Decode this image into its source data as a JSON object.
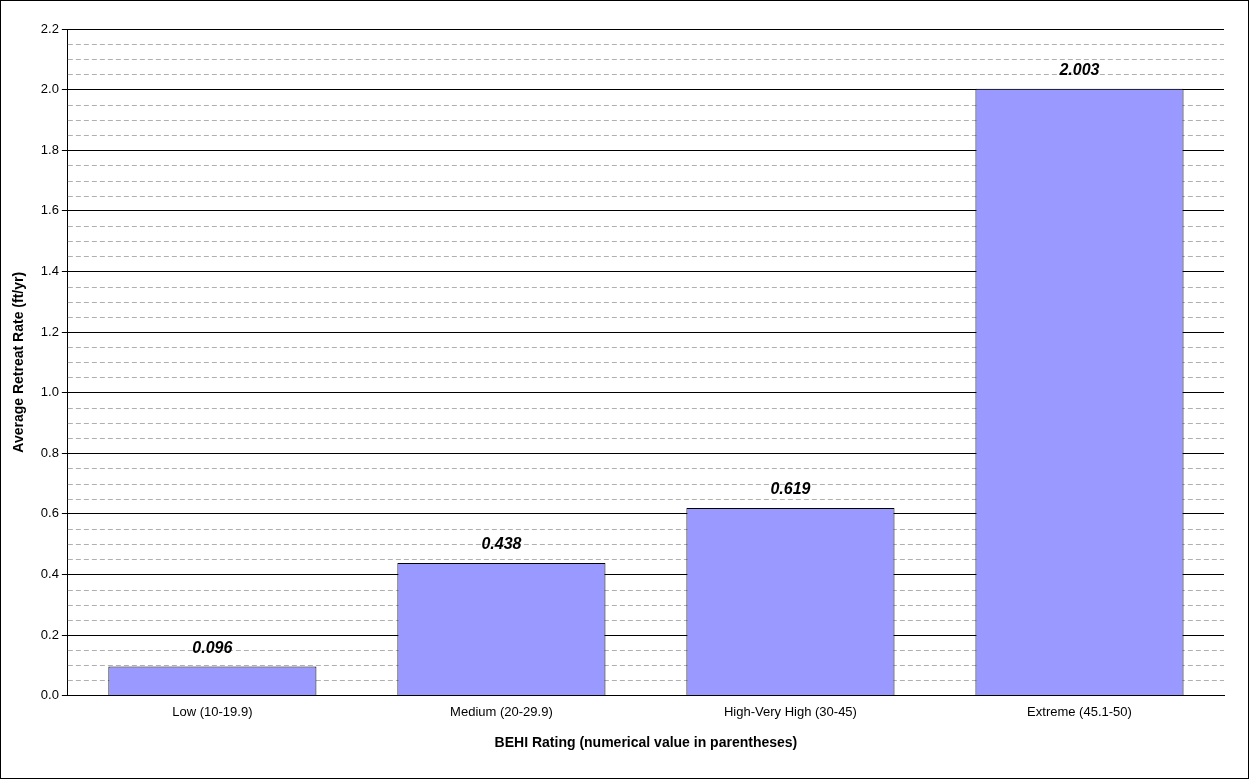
{
  "chart_data": {
    "type": "bar",
    "xlabel": "BEHI Rating (numerical value in parentheses)",
    "ylabel": "Average Retreat Rate (ft/yr)",
    "categories": [
      "Low (10-19.9)",
      "Medium (20-29.9)",
      "High-Very High (30-45)",
      "Extreme (45.1-50)"
    ],
    "values": [
      0.096,
      0.438,
      0.619,
      2.003
    ],
    "color": "#9999ff",
    "ylim": [
      0,
      2.2
    ],
    "yticks": [
      {
        "value": 0,
        "label": "0.0"
      },
      {
        "value": 0.2,
        "label": "0.2"
      },
      {
        "value": 0.4,
        "label": "0.4"
      },
      {
        "value": 0.6,
        "label": "0.6"
      },
      {
        "value": 0.8,
        "label": "0.8"
      },
      {
        "value": 1.0,
        "label": "1.0"
      },
      {
        "value": 1.2,
        "label": "1.2"
      },
      {
        "value": 1.4,
        "label": "1.4"
      },
      {
        "value": 1.6,
        "label": "1.6"
      },
      {
        "value": 1.8,
        "label": "1.8"
      },
      {
        "value": 2.0,
        "label": "2.0"
      },
      {
        "value": 2.2,
        "label": "2.2"
      }
    ],
    "grid": "y",
    "data_labels": true,
    "legend": false
  }
}
